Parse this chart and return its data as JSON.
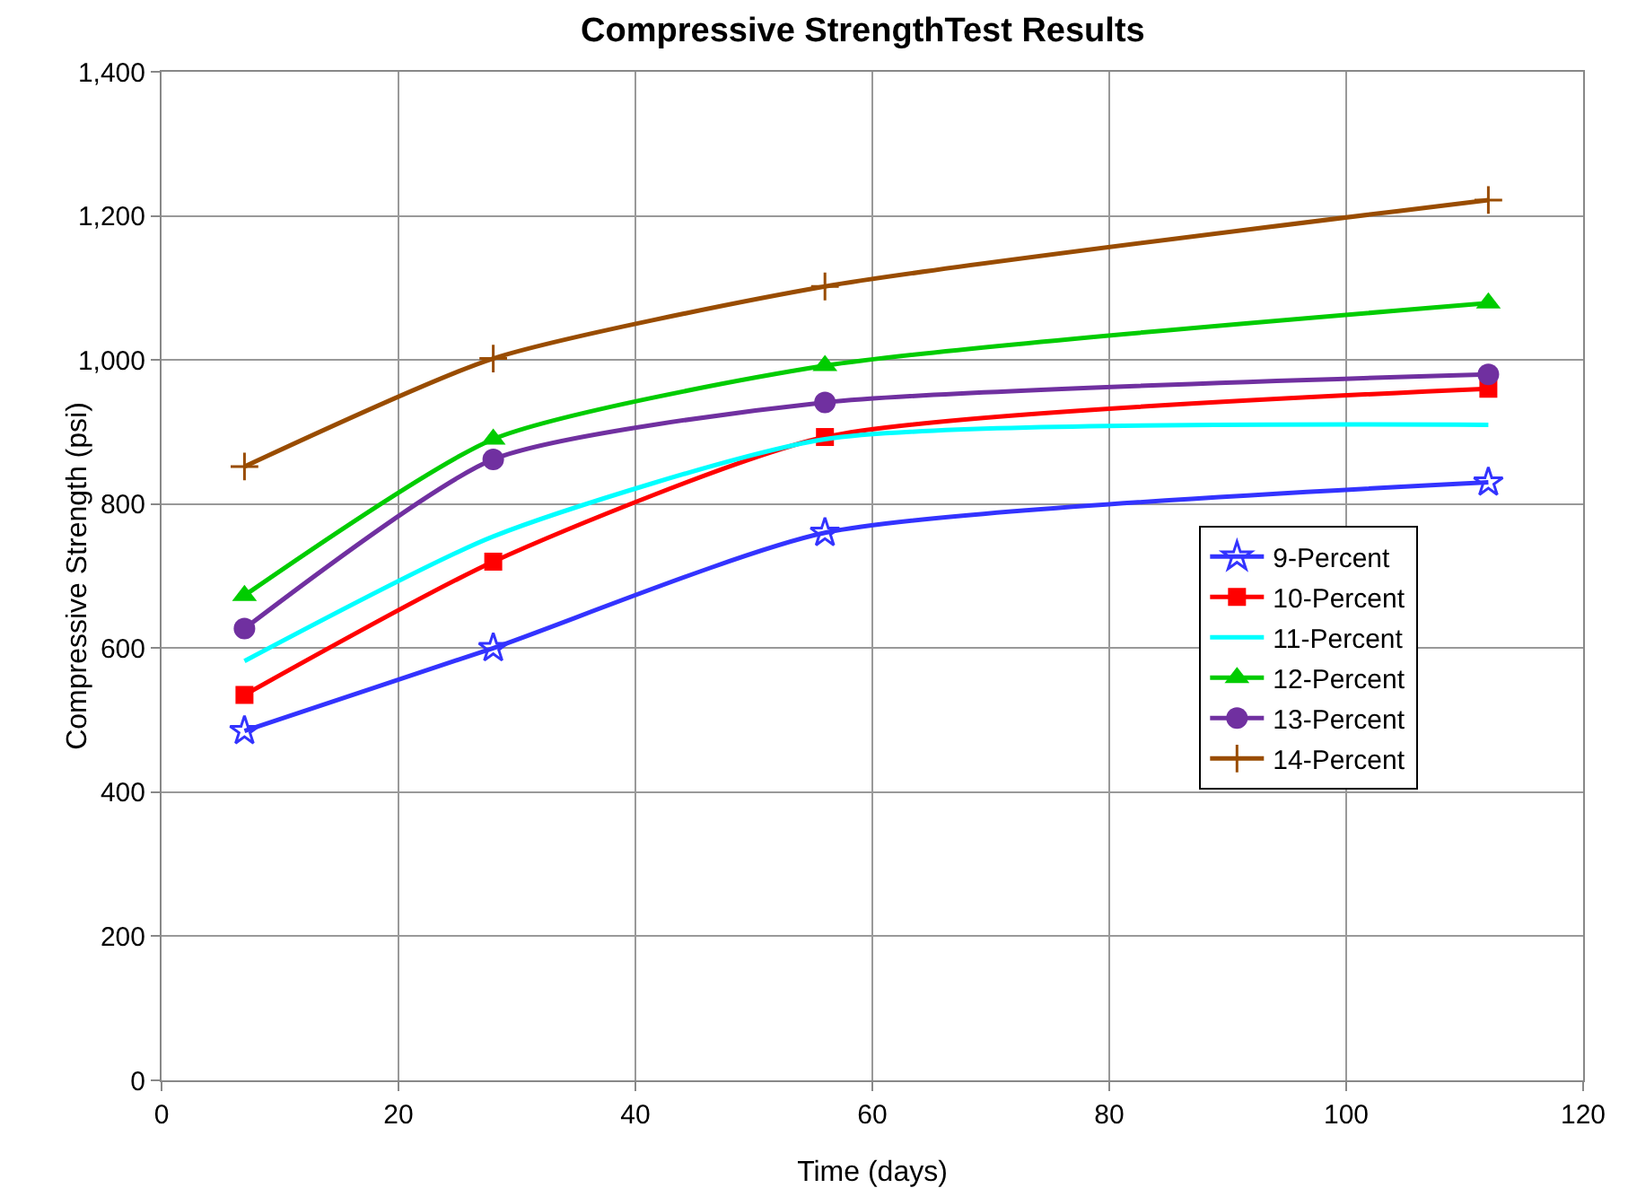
{
  "chart_data": {
    "type": "line",
    "title": "Compressive StrengthTest Results",
    "xlabel": "Time (days)",
    "ylabel": "Compressive Strength (psi)",
    "x": [
      7,
      28,
      56,
      112
    ],
    "xlim": [
      0,
      120
    ],
    "xticks": [
      0,
      20,
      40,
      60,
      80,
      100,
      120
    ],
    "ylim": [
      0,
      1400
    ],
    "yticks": [
      0,
      {
        "value": 200,
        "label": "200"
      },
      {
        "value": 400,
        "label": "400"
      },
      {
        "value": 600,
        "label": "600"
      },
      {
        "value": 800,
        "label": "800"
      },
      {
        "value": 1000,
        "label": "1,000"
      },
      {
        "value": 1200,
        "label": "1,200"
      },
      {
        "value": 1400,
        "label": "1,400"
      }
    ],
    "grid": true,
    "legend": "right",
    "line_style": "solid",
    "series": [
      {
        "name": "9-Percent",
        "color": "#3333ff",
        "marker": "star",
        "values": [
          485,
          600,
          760,
          830
        ]
      },
      {
        "name": "10-Percent",
        "color": "#ff0000",
        "marker": "square",
        "values": [
          535,
          720,
          893,
          960
        ]
      },
      {
        "name": "11-Percent",
        "color": "#00ffff",
        "marker": "none",
        "values": [
          582,
          755,
          890,
          910
        ]
      },
      {
        "name": "12-Percent",
        "color": "#00cc00",
        "marker": "triangle",
        "values": [
          673,
          890,
          992,
          1079
        ]
      },
      {
        "name": "13-Percent",
        "color": "#7030a0",
        "marker": "circle",
        "values": [
          627,
          862,
          941,
          980
        ]
      },
      {
        "name": "14-Percent",
        "color": "#994c00",
        "marker": "cross",
        "values": [
          852,
          1002,
          1102,
          1222
        ]
      }
    ]
  }
}
